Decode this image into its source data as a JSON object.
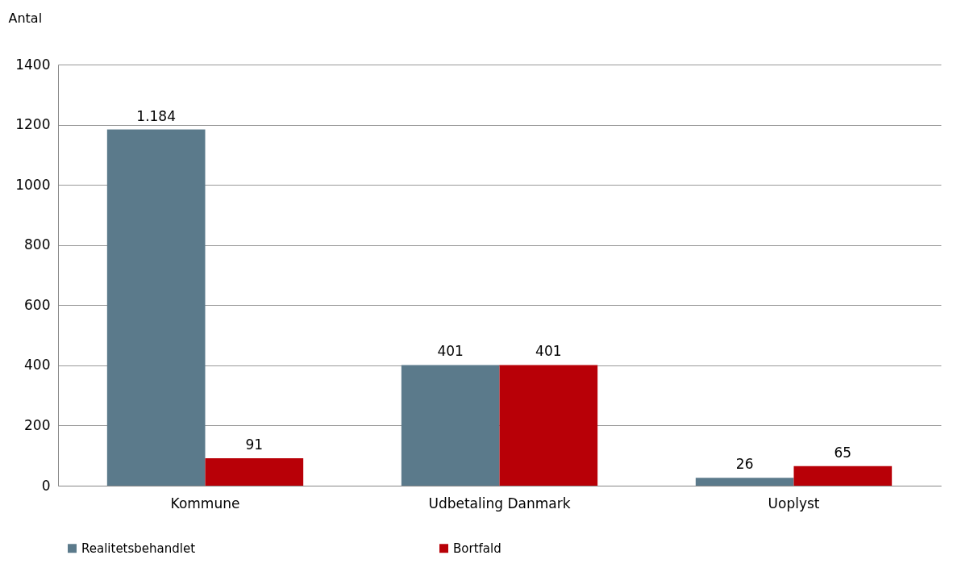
{
  "chart_data": {
    "type": "bar",
    "ylabel": "Antal",
    "categories": [
      "Kommune",
      "Udbetaling Danmark",
      "Uoplyst"
    ],
    "series": [
      {
        "name": "Realitetsbehandlet",
        "color": "#5b7a8b",
        "values": [
          1184,
          401,
          26
        ],
        "value_labels": [
          "1.184",
          "401",
          "26"
        ]
      },
      {
        "name": "Bortfald",
        "color": "#b80007",
        "values": [
          91,
          401,
          65
        ],
        "value_labels": [
          "91",
          "401",
          "65"
        ]
      }
    ],
    "ylim": [
      0,
      1400
    ],
    "yticks": [
      0,
      200,
      400,
      600,
      800,
      1000,
      1200,
      1400
    ],
    "grid": "y",
    "legend": "bottom"
  }
}
